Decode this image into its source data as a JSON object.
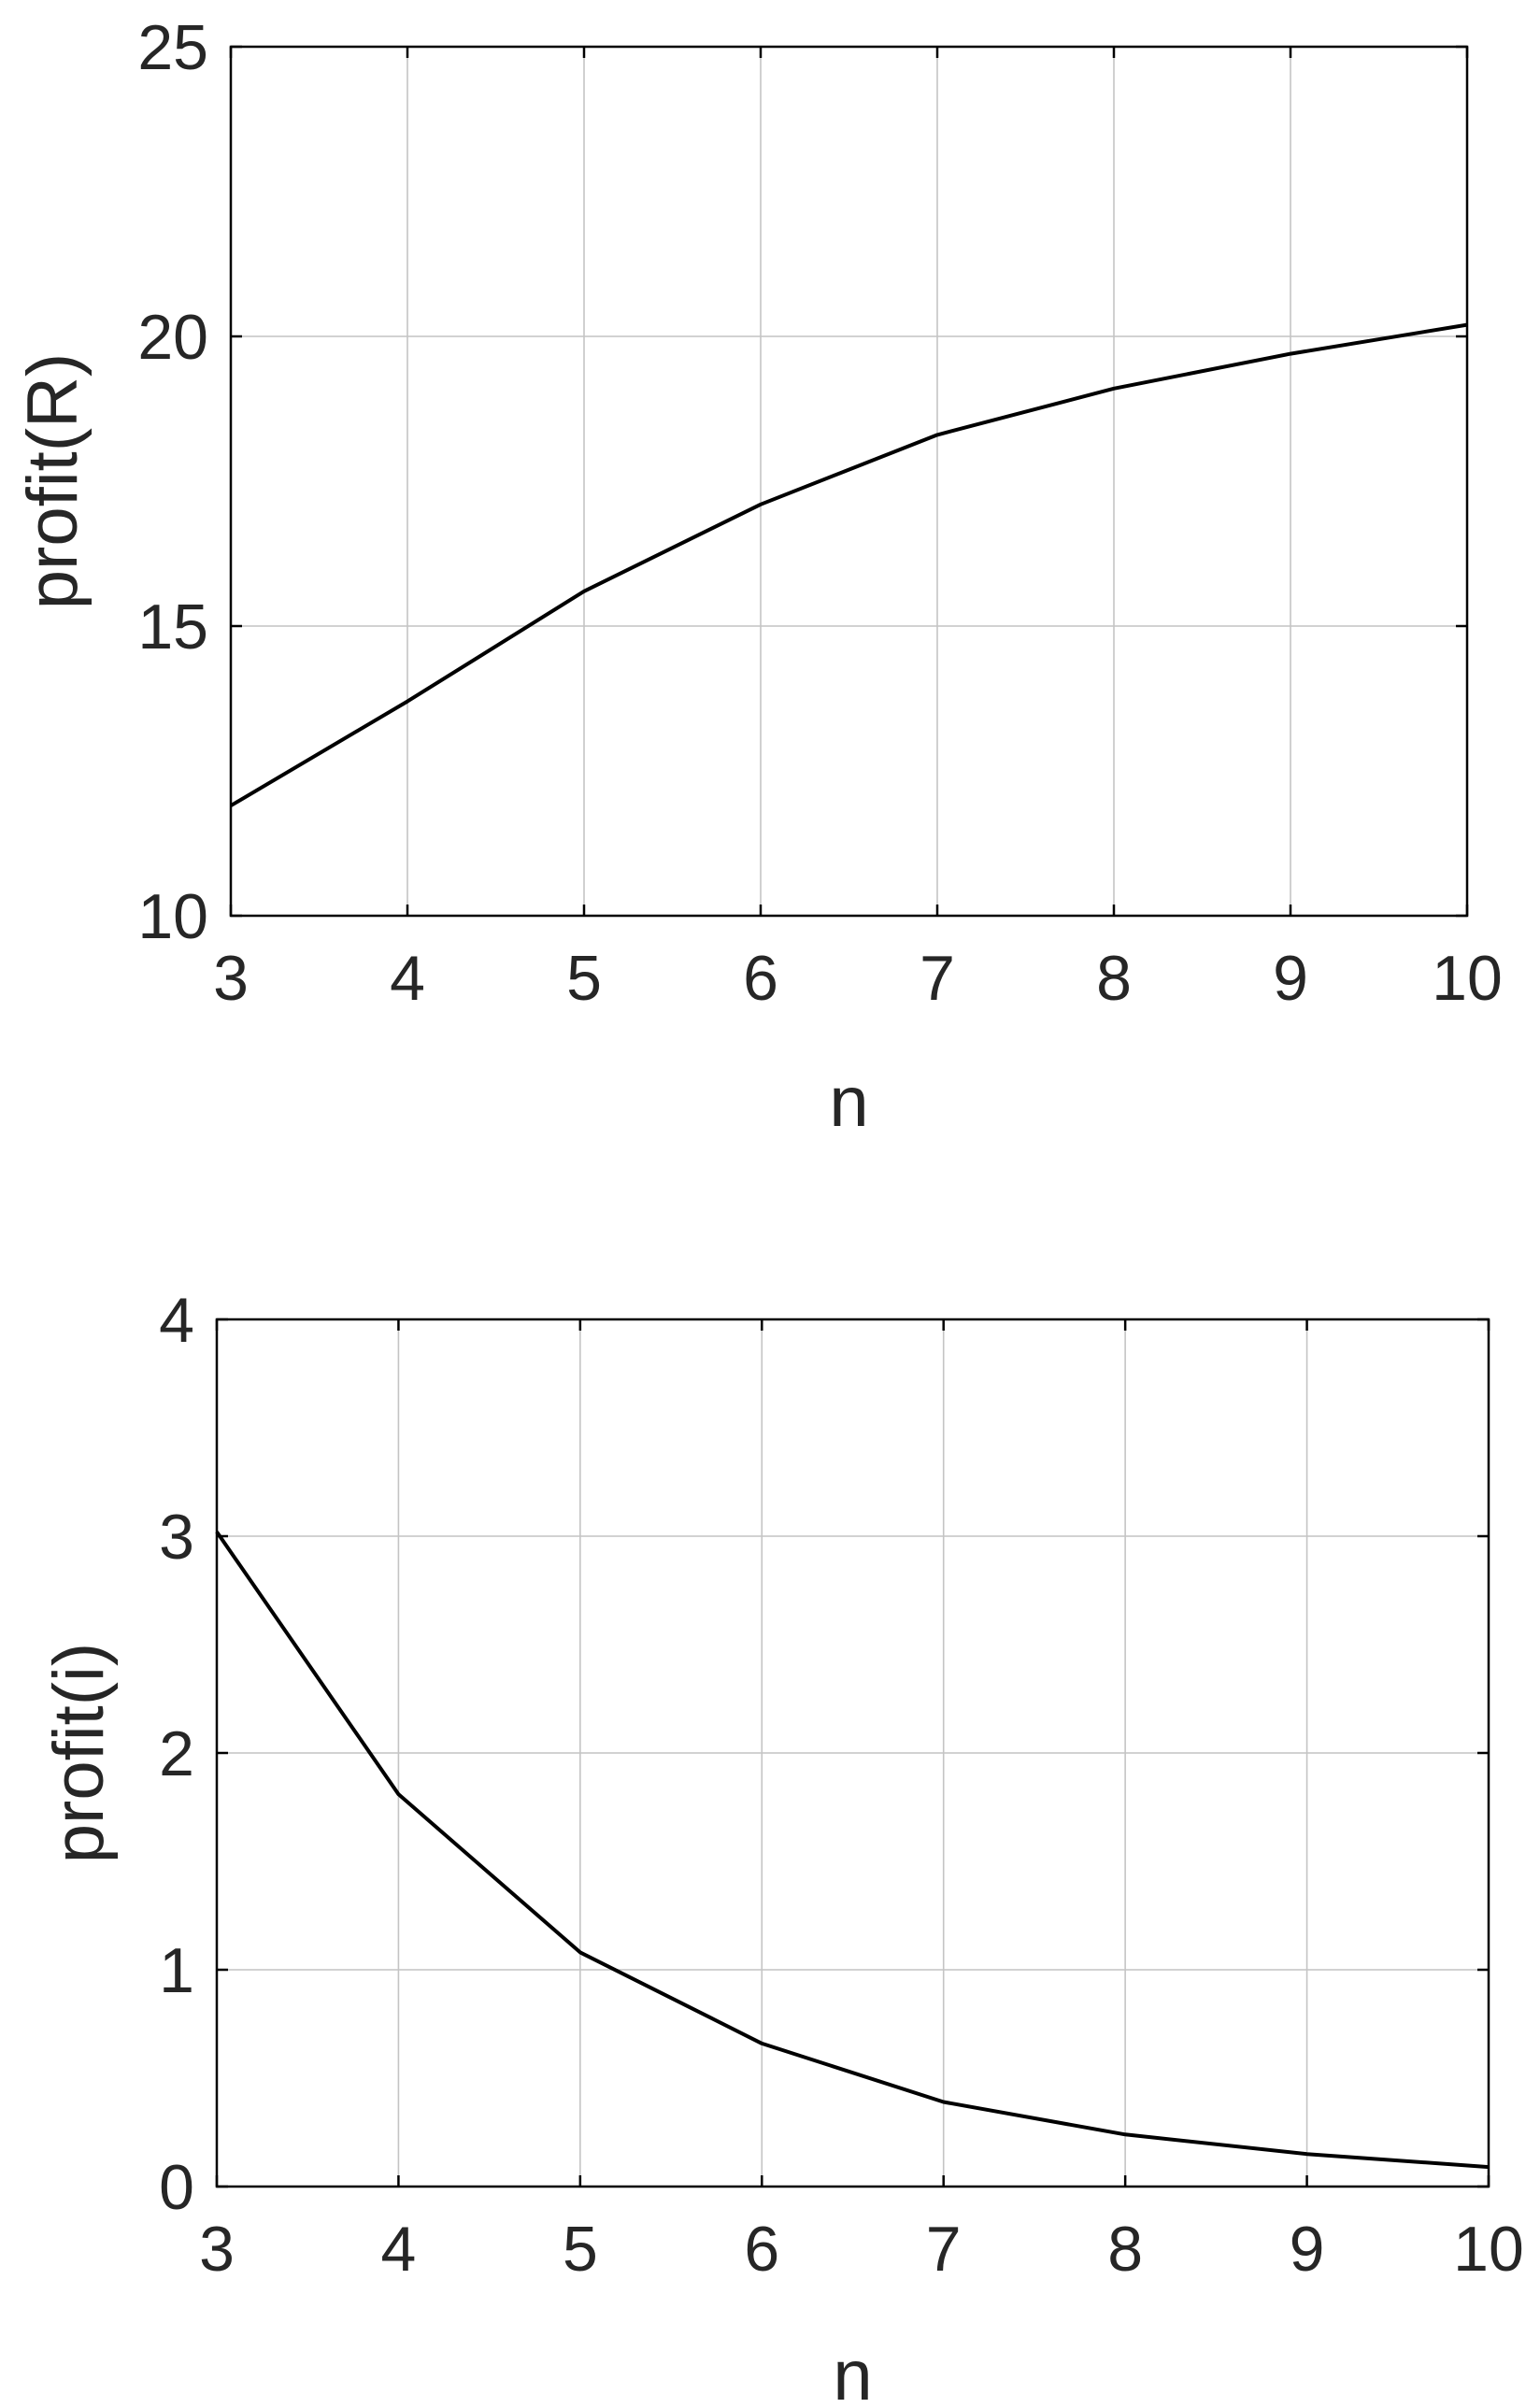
{
  "chart_data": [
    {
      "type": "line",
      "xlabel": "n",
      "ylabel": "profit(R)",
      "xlim": [
        3,
        10
      ],
      "ylim": [
        10,
        25
      ],
      "xticks": [
        3,
        4,
        5,
        6,
        7,
        8,
        9,
        10
      ],
      "yticks": [
        10,
        15,
        20,
        25
      ],
      "grid": true,
      "series": [
        {
          "x": [
            3,
            4,
            5,
            6,
            7,
            8,
            9,
            10
          ],
          "values": [
            11.9,
            13.7,
            15.6,
            17.1,
            18.3,
            19.1,
            19.7,
            20.2
          ]
        }
      ]
    },
    {
      "type": "line",
      "xlabel": "n",
      "ylabel": "profit(i)",
      "xlim": [
        3,
        10
      ],
      "ylim": [
        0,
        4
      ],
      "xticks": [
        3,
        4,
        5,
        6,
        7,
        8,
        9,
        10
      ],
      "yticks": [
        0,
        1,
        2,
        3,
        4
      ],
      "grid": true,
      "series": [
        {
          "x": [
            3,
            4,
            5,
            6,
            7,
            8,
            9,
            10
          ],
          "values": [
            3.02,
            1.81,
            1.08,
            0.66,
            0.39,
            0.24,
            0.15,
            0.09
          ]
        }
      ]
    }
  ]
}
